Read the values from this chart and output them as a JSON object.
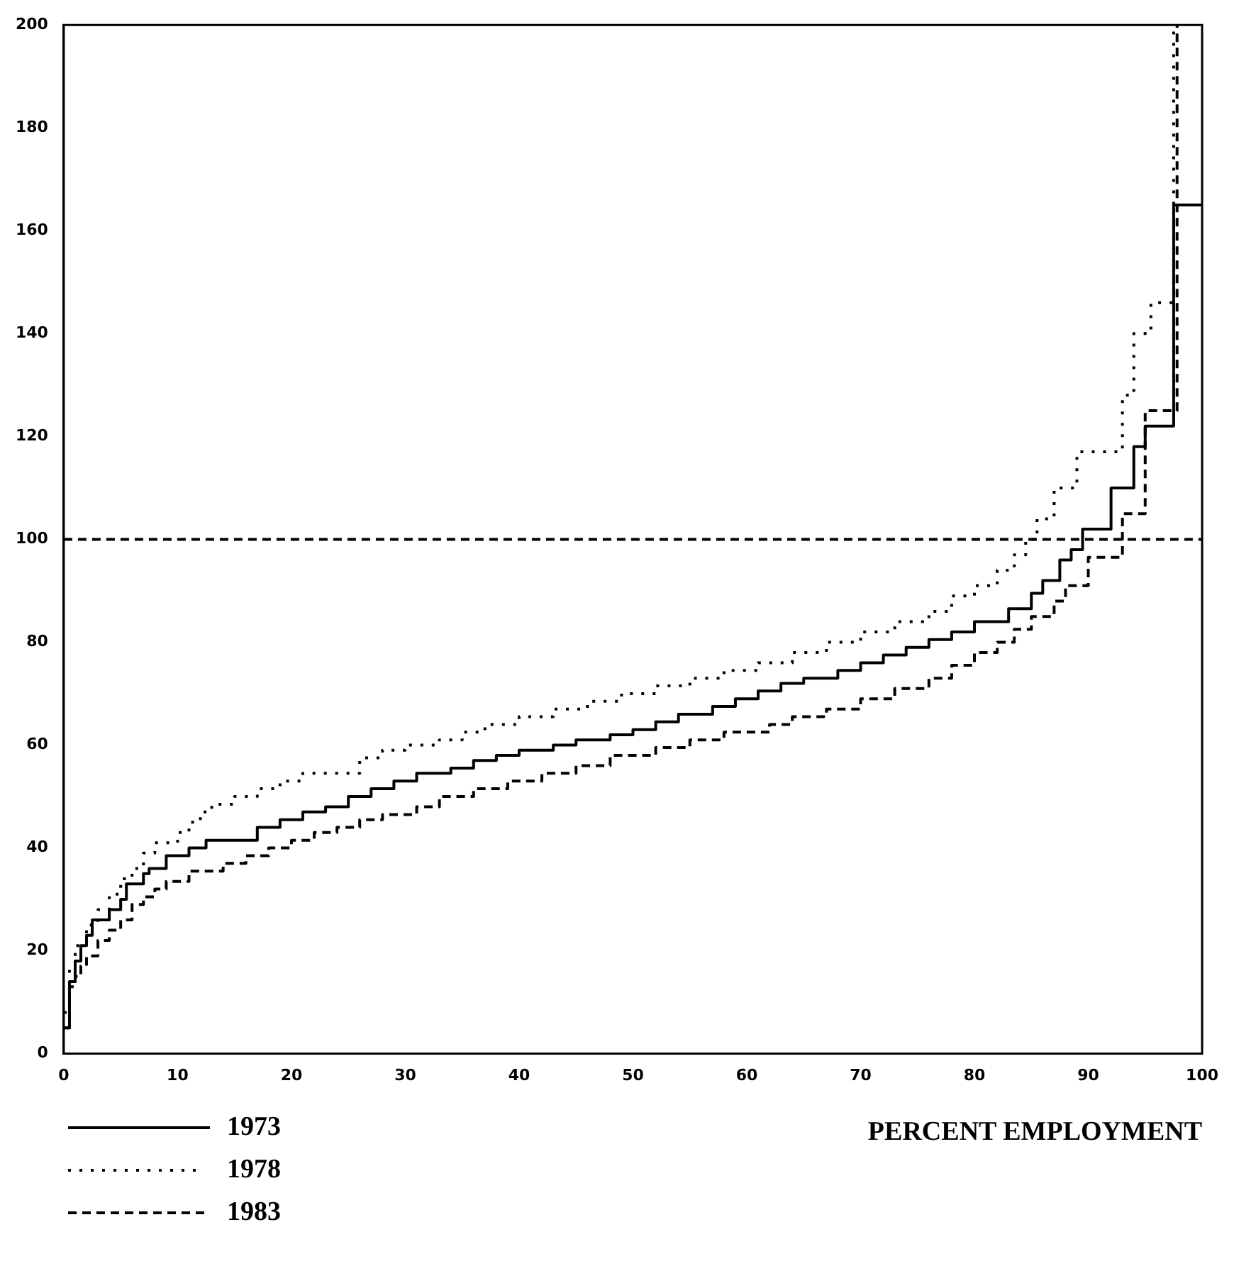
{
  "chart_data": {
    "type": "step",
    "xlabel": "PERCENT EMPLOYMENT",
    "xlim": [
      0,
      100
    ],
    "xticks": [
      0,
      10,
      20,
      30,
      40,
      50,
      60,
      70,
      80,
      90,
      100
    ],
    "ylim": [
      0,
      200
    ],
    "yticks": [
      0,
      20,
      40,
      60,
      80,
      100,
      120,
      140,
      160,
      180,
      200
    ],
    "legend": "bottom left",
    "grid": false,
    "ref_lines": [
      {
        "axis": "y",
        "value": 100,
        "line_style": "dashed",
        "color": "#000000"
      }
    ],
    "series": [
      {
        "name": "1973",
        "color": "#000000",
        "line_style": "solid",
        "x": [
          0,
          0.5,
          1,
          1.5,
          2,
          2.5,
          4,
          5,
          5.5,
          7,
          7.5,
          9,
          11,
          12.5,
          17,
          19,
          21,
          23,
          25,
          27,
          29,
          31,
          34,
          36,
          38,
          40,
          43,
          45,
          48,
          50,
          52,
          54,
          57,
          59,
          61,
          63,
          65,
          68,
          70,
          72,
          74,
          76,
          78,
          80,
          83,
          85,
          86,
          87.5,
          88.5,
          89.5,
          92,
          94,
          95,
          97.5,
          100
        ],
        "values": [
          5,
          14,
          18,
          21,
          23,
          26,
          28,
          30,
          33,
          35,
          36,
          38.5,
          40,
          41.5,
          44,
          45.5,
          47,
          48,
          50,
          51.5,
          53,
          54.5,
          55.5,
          57,
          58,
          59,
          60,
          61,
          62,
          63,
          64.5,
          66,
          67.5,
          69,
          70.5,
          72,
          73,
          74.5,
          76,
          77.5,
          79,
          80.5,
          82,
          84,
          86.5,
          89.5,
          92,
          96,
          98,
          102,
          110,
          118,
          122,
          165,
          165
        ]
      },
      {
        "name": "1978",
        "color": "#000000",
        "line_style": "dotted",
        "x": [
          0,
          0.5,
          1,
          2,
          3,
          4,
          5,
          6,
          7,
          8,
          10,
          11,
          12,
          13,
          15,
          17,
          19,
          21,
          26,
          28,
          30,
          33,
          35,
          37,
          40,
          43,
          46,
          49,
          52,
          55,
          58,
          61,
          64,
          67,
          70,
          73,
          76,
          78,
          80,
          82,
          83.5,
          84.5,
          85.5,
          87,
          89,
          93,
          94,
          95.5,
          97.5
        ],
        "values": [
          8,
          17,
          21,
          25,
          28,
          31,
          34,
          36,
          39,
          41,
          43,
          45,
          47,
          48.5,
          50,
          51.5,
          53,
          54.5,
          57.5,
          59,
          60,
          61,
          62.5,
          64,
          65.5,
          67,
          68.5,
          70,
          71.5,
          73,
          74.5,
          76,
          78,
          80,
          82,
          84,
          86,
          89,
          91,
          94,
          97,
          100,
          104,
          110,
          117,
          128,
          140,
          146,
          200
        ]
      },
      {
        "name": "1983",
        "color": "#000000",
        "line_style": "dashed",
        "x": [
          0,
          0.5,
          1,
          1.5,
          2,
          3,
          4,
          5,
          6,
          7,
          8,
          9,
          11,
          14,
          16,
          18,
          20,
          22,
          24,
          26,
          28,
          31,
          33,
          36,
          39,
          42,
          45,
          48,
          52,
          55,
          58,
          62,
          64,
          67,
          70,
          73,
          76,
          78,
          80,
          82,
          83.5,
          85,
          87,
          88,
          90,
          93,
          95,
          97.8
        ],
        "values": [
          5,
          13,
          15,
          17,
          19,
          22,
          24,
          26,
          29,
          30.5,
          32,
          33.5,
          35.5,
          37,
          38.5,
          40,
          41.5,
          43,
          44,
          45.5,
          46.5,
          48,
          50,
          51.5,
          53,
          54.5,
          56,
          58,
          59.5,
          61,
          62.5,
          64,
          65.5,
          67,
          69,
          71,
          73,
          75.5,
          78,
          80,
          82.5,
          85,
          88,
          91,
          96.5,
          105,
          125,
          200
        ]
      }
    ]
  }
}
